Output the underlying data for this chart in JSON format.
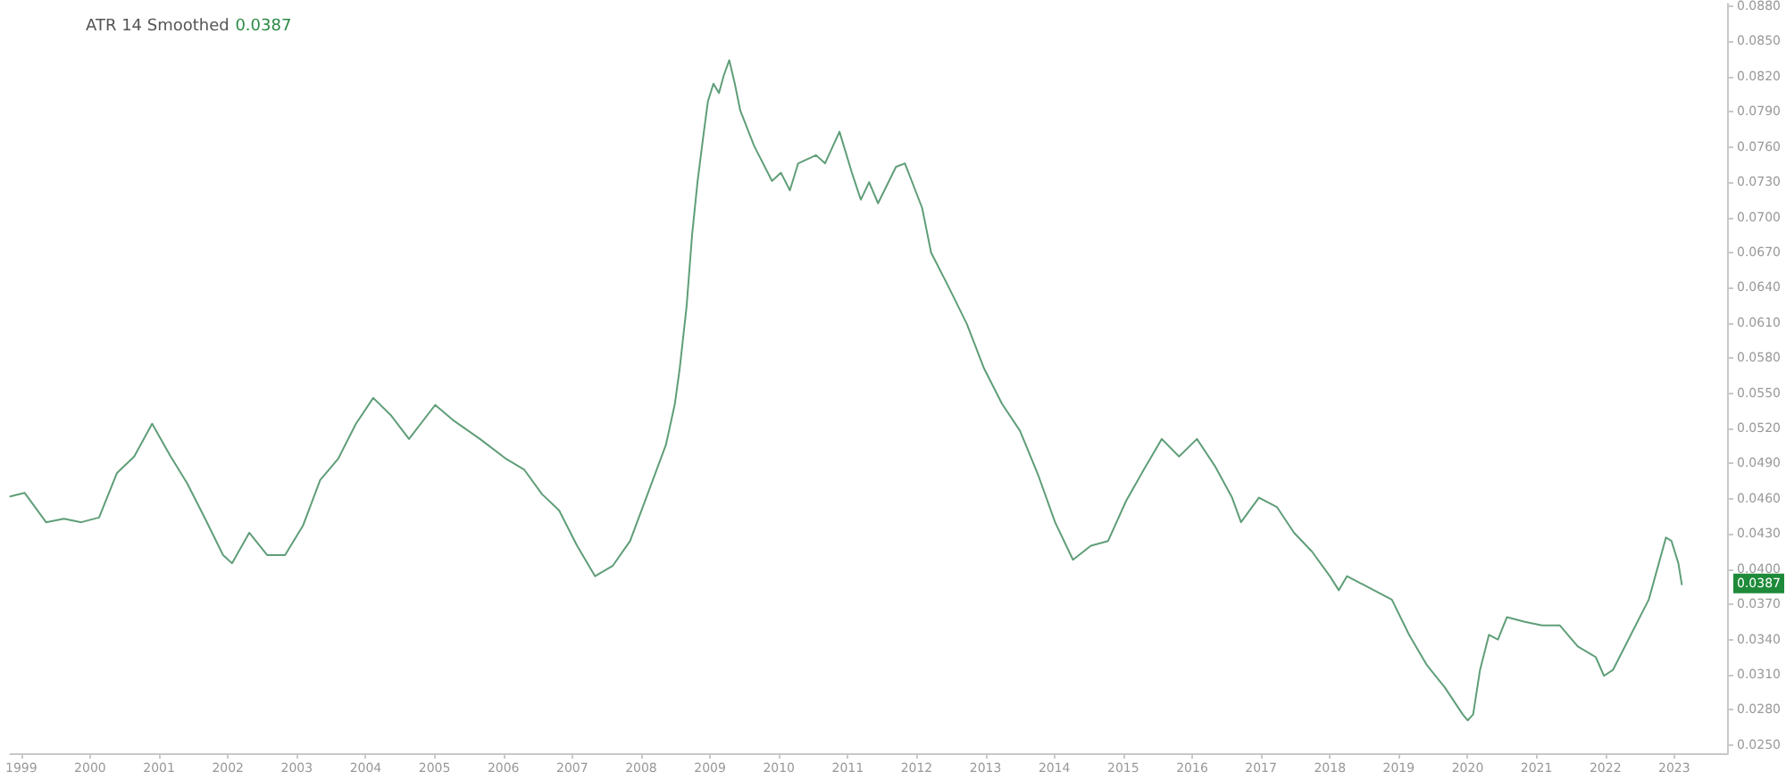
{
  "chart_data": {
    "type": "line",
    "legend": "top left",
    "grid": false,
    "marker": "none",
    "line_style": "solid",
    "xlim": [
      1998.84,
      2023.78
    ],
    "xticks": [
      1999,
      2000,
      2001,
      2002,
      2003,
      2004,
      2005,
      2006,
      2007,
      2008,
      2009,
      2010,
      2011,
      2012,
      2013,
      2014,
      2015,
      2016,
      2017,
      2018,
      2019,
      2020,
      2021,
      2022,
      2023
    ],
    "ylim": [
      0.0243,
      0.0882
    ],
    "yticks": [
      {
        "value": 0.025,
        "label": "0.0250"
      },
      {
        "value": 0.028,
        "label": "0.0280"
      },
      {
        "value": 0.031,
        "label": "0.0310"
      },
      {
        "value": 0.034,
        "label": "0.0340"
      },
      {
        "value": 0.037,
        "label": "0.0370"
      },
      {
        "value": 0.04,
        "label": "0.0400"
      },
      {
        "value": 0.043,
        "label": "0.0430"
      },
      {
        "value": 0.046,
        "label": "0.0460"
      },
      {
        "value": 0.049,
        "label": "0.0490"
      },
      {
        "value": 0.052,
        "label": "0.0520"
      },
      {
        "value": 0.055,
        "label": "0.0550"
      },
      {
        "value": 0.058,
        "label": "0.0580"
      },
      {
        "value": 0.061,
        "label": "0.0610"
      },
      {
        "value": 0.064,
        "label": "0.0640"
      },
      {
        "value": 0.067,
        "label": "0.0670"
      },
      {
        "value": 0.07,
        "label": "0.0700"
      },
      {
        "value": 0.073,
        "label": "0.0730"
      },
      {
        "value": 0.076,
        "label": "0.0760"
      },
      {
        "value": 0.079,
        "label": "0.0790"
      },
      {
        "value": 0.082,
        "label": "0.0820"
      },
      {
        "value": 0.085,
        "label": "0.0850"
      },
      {
        "value": 0.088,
        "label": "0.0880"
      }
    ],
    "annotations": [
      "0.0387"
    ],
    "series": [
      {
        "name": "ATR 14 Smoothed",
        "color": "#5f9e78",
        "x": [
          1998.84,
          1999.05,
          1999.36,
          1999.62,
          1999.87,
          2000.13,
          2000.39,
          2000.64,
          2000.9,
          2001.16,
          2001.41,
          2001.67,
          2001.93,
          2002.06,
          2002.31,
          2002.57,
          2002.83,
          2003.09,
          2003.34,
          2003.6,
          2003.86,
          2004.11,
          2004.37,
          2004.63,
          2005.01,
          2005.27,
          2005.66,
          2006.04,
          2006.3,
          2006.56,
          2006.81,
          2007.07,
          2007.33,
          2007.59,
          2007.84,
          2008.1,
          2008.36,
          2008.49,
          2008.56,
          2008.66,
          2008.74,
          2008.82,
          2008.9,
          2008.97,
          2009.05,
          2009.13,
          2009.2,
          2009.28,
          2009.36,
          2009.44,
          2009.64,
          2009.9,
          2010.03,
          2010.16,
          2010.28,
          2010.54,
          2010.67,
          2010.88,
          2011.06,
          2011.19,
          2011.31,
          2011.44,
          2011.7,
          2011.83,
          2012.08,
          2012.21,
          2012.47,
          2012.73,
          2012.98,
          2013.24,
          2013.5,
          2013.76,
          2014.01,
          2014.27,
          2014.53,
          2014.78,
          2015.04,
          2015.3,
          2015.56,
          2015.81,
          2016.07,
          2016.33,
          2016.58,
          2016.71,
          2016.97,
          2017.23,
          2017.48,
          2017.74,
          2018.0,
          2018.13,
          2018.25,
          2018.64,
          2018.9,
          2019.15,
          2019.41,
          2019.67,
          2019.93,
          2020.0,
          2020.08,
          2020.18,
          2020.31,
          2020.44,
          2020.57,
          2020.83,
          2021.08,
          2021.34,
          2021.6,
          2021.86,
          2021.98,
          2022.11,
          2022.37,
          2022.63,
          2022.88,
          2022.96,
          2023.06,
          2023.11
        ],
        "values": [
          0.0462,
          0.0465,
          0.044,
          0.0443,
          0.044,
          0.0444,
          0.0482,
          0.0496,
          0.0524,
          0.0497,
          0.0473,
          0.0443,
          0.0412,
          0.0405,
          0.0431,
          0.0412,
          0.0412,
          0.0437,
          0.0476,
          0.0494,
          0.0524,
          0.0546,
          0.0531,
          0.0511,
          0.054,
          0.0527,
          0.0511,
          0.0494,
          0.0485,
          0.0464,
          0.045,
          0.042,
          0.0394,
          0.0403,
          0.0424,
          0.0465,
          0.0506,
          0.0541,
          0.0571,
          0.0624,
          0.0685,
          0.0731,
          0.0768,
          0.0799,
          0.0814,
          0.0806,
          0.0821,
          0.0834,
          0.0814,
          0.0791,
          0.0761,
          0.0731,
          0.0738,
          0.0723,
          0.0746,
          0.0753,
          0.0746,
          0.0773,
          0.0738,
          0.0715,
          0.073,
          0.0712,
          0.0743,
          0.0746,
          0.0708,
          0.067,
          0.064,
          0.0609,
          0.0571,
          0.0541,
          0.0518,
          0.0481,
          0.044,
          0.0408,
          0.042,
          0.0424,
          0.0458,
          0.0485,
          0.0511,
          0.0496,
          0.0511,
          0.0488,
          0.0461,
          0.044,
          0.0461,
          0.0453,
          0.0431,
          0.0415,
          0.0394,
          0.0382,
          0.0394,
          0.0382,
          0.0374,
          0.0344,
          0.0318,
          0.0299,
          0.0276,
          0.0271,
          0.0276,
          0.0314,
          0.0344,
          0.034,
          0.0359,
          0.0355,
          0.0352,
          0.0352,
          0.0334,
          0.0325,
          0.0309,
          0.0314,
          0.0344,
          0.0374,
          0.0427,
          0.0424,
          0.0405,
          0.0387
        ]
      }
    ]
  }
}
